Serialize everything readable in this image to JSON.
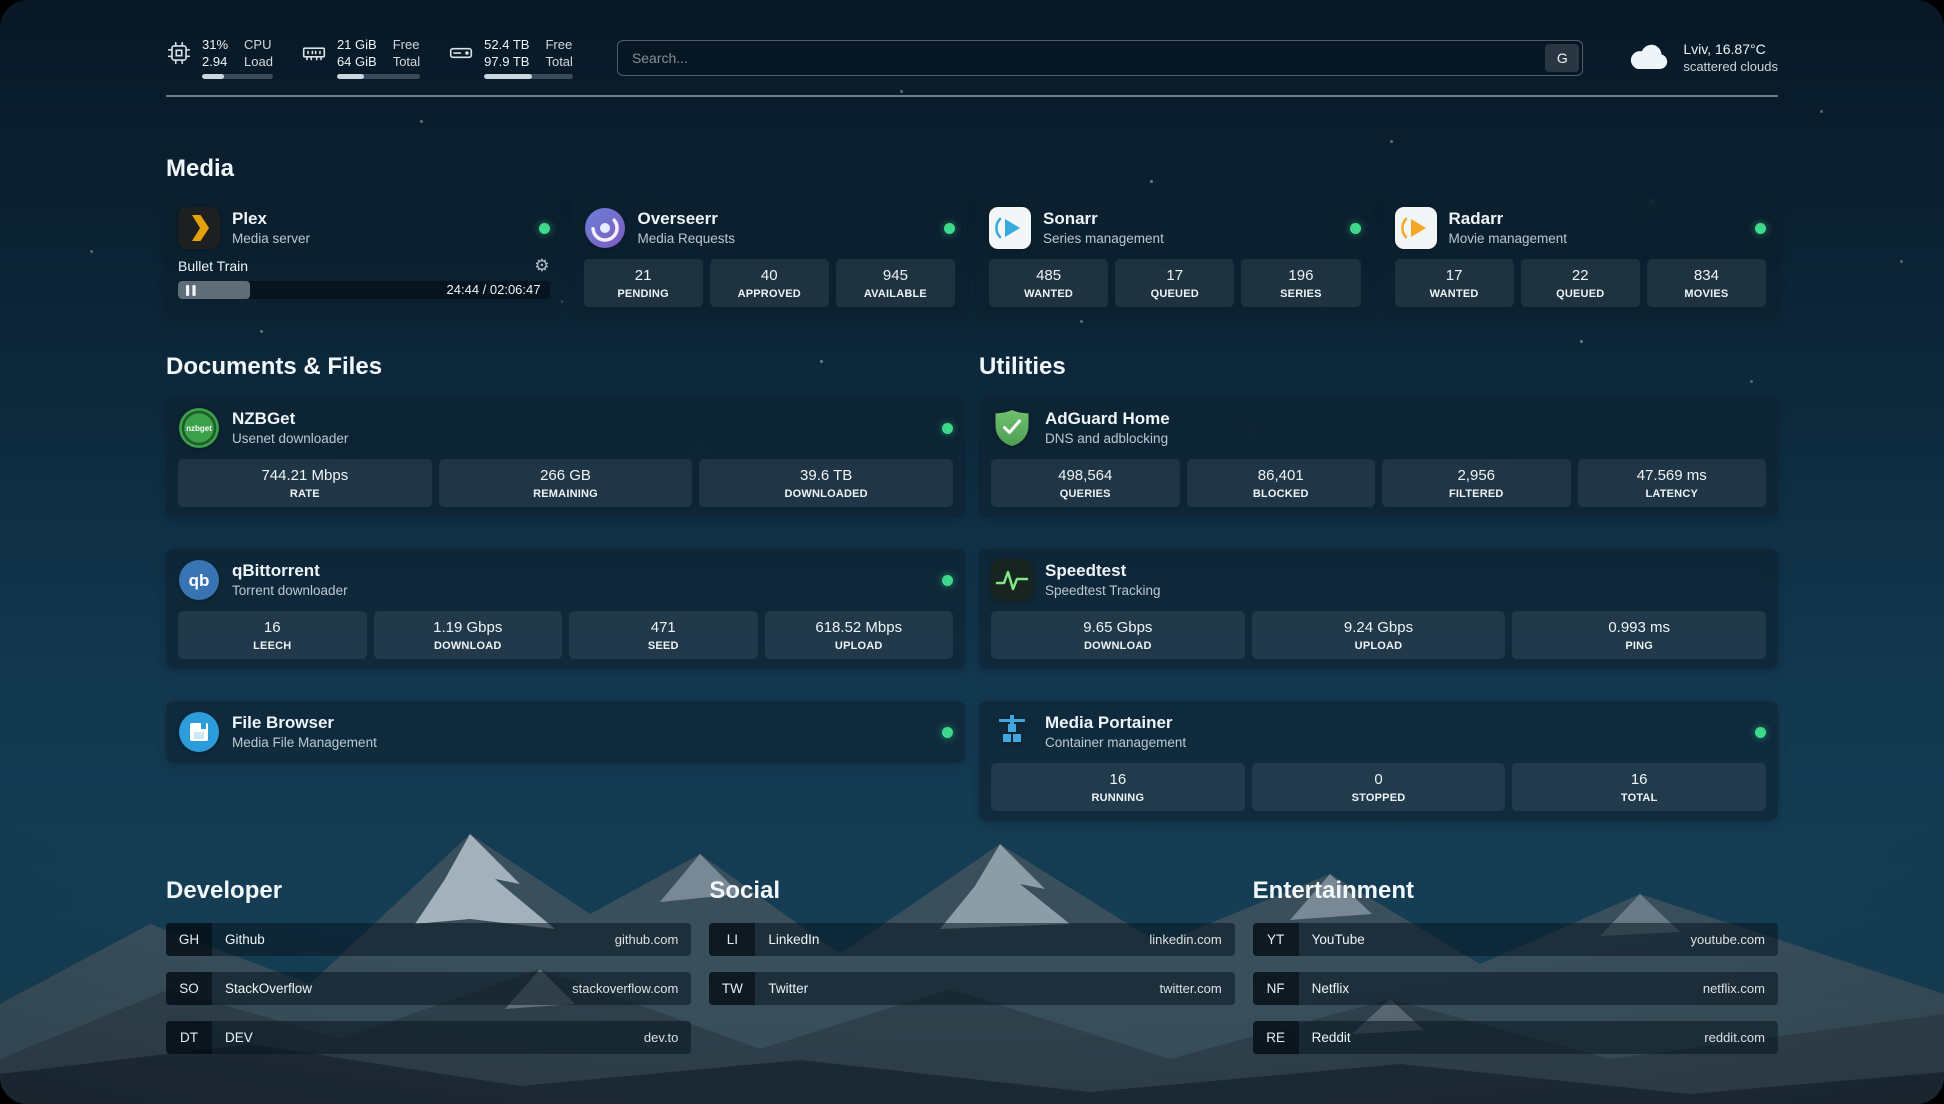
{
  "colors": {
    "status_online": "#3fd98c",
    "meter_fill": "#ccd6dd",
    "accent_plex": "#e5a00d",
    "accent_sonarr": "#35aadc",
    "accent_radarr": "#f5a623",
    "accent_qbittorrent": "#3873b3",
    "accent_nzbget": "#3aa04a",
    "accent_filebrowser": "#2d9cdb",
    "accent_adguard": "#5fb760",
    "accent_speedtest_line": "#7ee787",
    "accent_portainer": "#3fa7dd"
  },
  "icons": {
    "gear_glyph": "⚙",
    "nzbget_text": "nzbget",
    "qbittorrent_text": "qb"
  },
  "topbar": {
    "cpu": {
      "value_top": "31%",
      "value_bottom": "2.94",
      "label_top": "CPU",
      "label_bottom": "Load",
      "percent": 31
    },
    "ram": {
      "value_top": "21 GiB",
      "value_bottom": "64 GiB",
      "label_top": "Free",
      "label_bottom": "Total",
      "percent": 33
    },
    "disk": {
      "value_top": "52.4 TB",
      "value_bottom": "97.9 TB",
      "label_top": "Free",
      "label_bottom": "Total",
      "percent": 54
    },
    "search": {
      "placeholder": "Search...",
      "engine_button": "G"
    },
    "weather": {
      "location": "Lviv, 16.87°C",
      "condition": "scattered clouds"
    }
  },
  "media": {
    "title": "Media",
    "plex": {
      "name": "Plex",
      "subtitle": "Media server",
      "now_playing": {
        "title": "Bullet Train",
        "time": "24:44 / 02:06:47",
        "progress_percent": 19.5
      }
    },
    "overseerr": {
      "name": "Overseerr",
      "subtitle": "Media Requests",
      "stats": [
        {
          "value": "21",
          "label": "PENDING"
        },
        {
          "value": "40",
          "label": "APPROVED"
        },
        {
          "value": "945",
          "label": "AVAILABLE"
        }
      ]
    },
    "sonarr": {
      "name": "Sonarr",
      "subtitle": "Series management",
      "stats": [
        {
          "value": "485",
          "label": "WANTED"
        },
        {
          "value": "17",
          "label": "QUEUED"
        },
        {
          "value": "196",
          "label": "SERIES"
        }
      ]
    },
    "radarr": {
      "name": "Radarr",
      "subtitle": "Movie management",
      "stats": [
        {
          "value": "17",
          "label": "WANTED"
        },
        {
          "value": "22",
          "label": "QUEUED"
        },
        {
          "value": "834",
          "label": "MOVIES"
        }
      ]
    }
  },
  "documents": {
    "title": "Documents & Files",
    "nzbget": {
      "name": "NZBGet",
      "subtitle": "Usenet downloader",
      "stats": [
        {
          "value": "744.21 Mbps",
          "label": "RATE"
        },
        {
          "value": "266 GB",
          "label": "REMAINING"
        },
        {
          "value": "39.6 TB",
          "label": "DOWNLOADED"
        }
      ]
    },
    "qbittorrent": {
      "name": "qBittorrent",
      "subtitle": "Torrent downloader",
      "stats": [
        {
          "value": "16",
          "label": "LEECH"
        },
        {
          "value": "1.19 Gbps",
          "label": "DOWNLOAD"
        },
        {
          "value": "471",
          "label": "SEED"
        },
        {
          "value": "618.52 Mbps",
          "label": "UPLOAD"
        }
      ]
    },
    "filebrowser": {
      "name": "File Browser",
      "subtitle": "Media File Management"
    }
  },
  "utilities": {
    "title": "Utilities",
    "adguard": {
      "name": "AdGuard Home",
      "subtitle": "DNS and adblocking",
      "stats": [
        {
          "value": "498,564",
          "label": "QUERIES"
        },
        {
          "value": "86,401",
          "label": "BLOCKED"
        },
        {
          "value": "2,956",
          "label": "FILTERED"
        },
        {
          "value": "47.569 ms",
          "label": "LATENCY"
        }
      ]
    },
    "speedtest": {
      "name": "Speedtest",
      "subtitle": "Speedtest Tracking",
      "stats": [
        {
          "value": "9.65 Gbps",
          "label": "DOWNLOAD"
        },
        {
          "value": "9.24 Gbps",
          "label": "UPLOAD"
        },
        {
          "value": "0.993 ms",
          "label": "PING"
        }
      ]
    },
    "portainer": {
      "name": "Media Portainer",
      "subtitle": "Container management",
      "stats": [
        {
          "value": "16",
          "label": "RUNNING"
        },
        {
          "value": "0",
          "label": "STOPPED"
        },
        {
          "value": "16",
          "label": "TOTAL"
        }
      ]
    }
  },
  "bookmarks": {
    "developer": {
      "title": "Developer",
      "items": [
        {
          "abbr": "GH",
          "name": "Github",
          "url": "github.com"
        },
        {
          "abbr": "SO",
          "name": "StackOverflow",
          "url": "stackoverflow.com"
        },
        {
          "abbr": "DT",
          "name": "DEV",
          "url": "dev.to"
        }
      ]
    },
    "social": {
      "title": "Social",
      "items": [
        {
          "abbr": "LI",
          "name": "LinkedIn",
          "url": "linkedin.com"
        },
        {
          "abbr": "TW",
          "name": "Twitter",
          "url": "twitter.com"
        }
      ]
    },
    "entertainment": {
      "title": "Entertainment",
      "items": [
        {
          "abbr": "YT",
          "name": "YouTube",
          "url": "youtube.com"
        },
        {
          "abbr": "NF",
          "name": "Netflix",
          "url": "netflix.com"
        },
        {
          "abbr": "RE",
          "name": "Reddit",
          "url": "reddit.com"
        }
      ]
    }
  }
}
